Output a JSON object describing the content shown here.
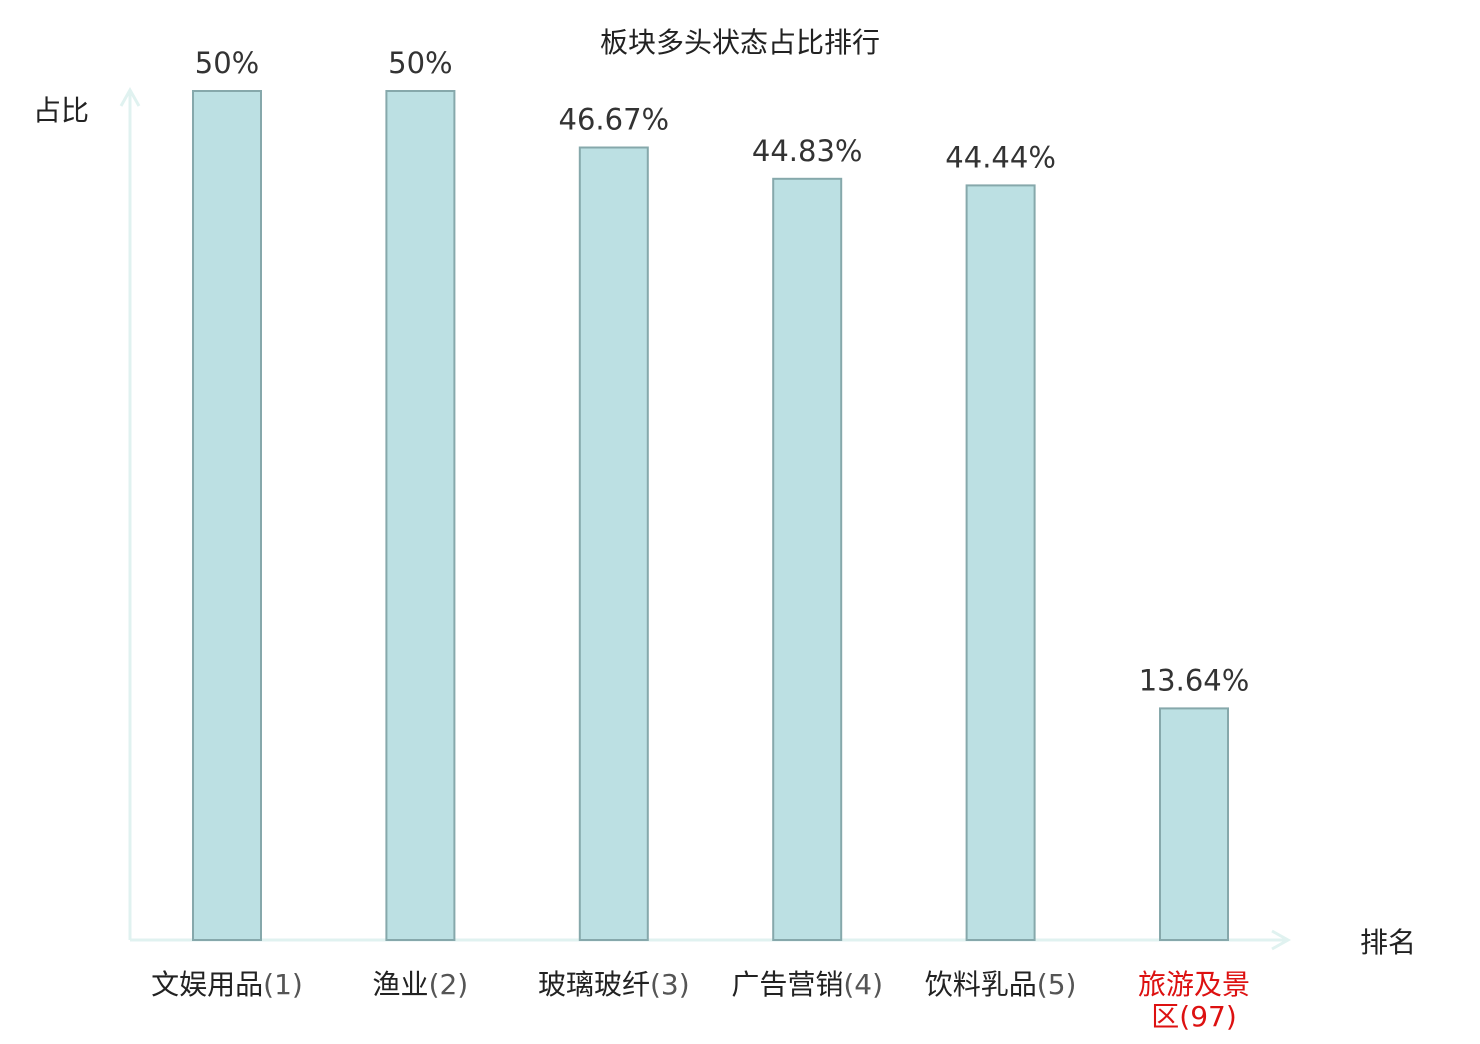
{
  "chart_data": {
    "type": "bar",
    "title": "板块多头状态占比排行",
    "xlabel": "排名",
    "ylabel": "占比",
    "ylim": [
      0,
      50
    ],
    "grid": false,
    "categories": [
      {
        "name": "文娱用品",
        "rank": "(1)",
        "highlight": false
      },
      {
        "name": "渔业",
        "rank": "(2)",
        "highlight": false
      },
      {
        "name": "玻璃玻纤",
        "rank": "(3)",
        "highlight": false
      },
      {
        "name": "广告营销",
        "rank": "(4)",
        "highlight": false
      },
      {
        "name": "饮料乳品",
        "rank": "(5)",
        "highlight": false
      },
      {
        "name": "旅游及景区",
        "rank": "(97)",
        "highlight": true
      }
    ],
    "values": [
      50,
      50,
      46.67,
      44.83,
      44.44,
      13.64
    ],
    "value_labels": [
      "50%",
      "50%",
      "46.67%",
      "44.83%",
      "44.44%",
      "13.64%"
    ]
  },
  "colors": {
    "bar_fill": "#bce0e3",
    "bar_stroke": "#86a8ab",
    "axis": "#e0f2f0",
    "label_text": "#333333",
    "category_text": "#222222",
    "highlight_text": "#dd1111",
    "rank_text": "#555555"
  }
}
